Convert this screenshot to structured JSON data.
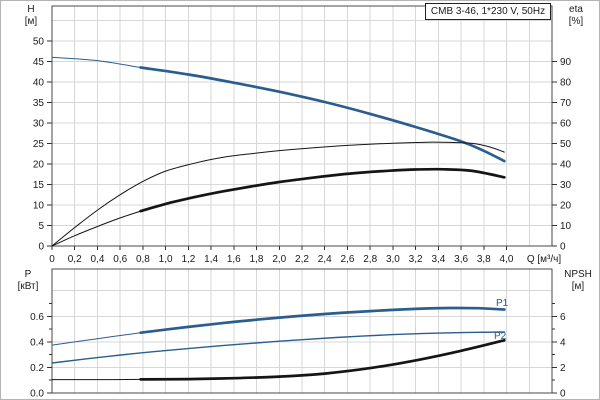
{
  "panel_title": "CMB 3-46, 1*230 V, 50Hz",
  "colors": {
    "curve_blue": "#2b5d8f",
    "curve_black": "#151515",
    "grid": "#d7d7d7",
    "frame": "#4a4a4a",
    "tick": "#333333",
    "text": "#1a1a1a",
    "panel_border": "#b4b4b4"
  },
  "chart_data": [
    {
      "type": "line",
      "title": "CMB 3-46, 1*230 V, 50Hz",
      "position": "top",
      "x_axis": {
        "label": "Q [м³/ч]",
        "min": 0,
        "max": 4.4,
        "grid_step": 0.2,
        "tick_values": [
          0,
          0.2,
          0.4,
          0.6,
          0.8,
          1.0,
          1.2,
          1.4,
          1.6,
          1.8,
          2.0,
          2.2,
          2.4,
          2.6,
          2.8,
          3.0,
          3.2,
          3.4,
          3.6,
          3.8,
          4.0
        ],
        "tick_labels": [
          "0",
          "0,2",
          "0,4",
          "0,6",
          "0,8",
          "1,0",
          "1,2",
          "1,4",
          "1,6",
          "1,8",
          "2,0",
          "2,2",
          "2,4",
          "2,6",
          "2,8",
          "3,0",
          "3,2",
          "3,4",
          "3,6",
          "3,8",
          "4,0"
        ]
      },
      "y_left": {
        "label": "H",
        "unit": "[м]",
        "min": 0,
        "max": 58.5,
        "grid_step": 5,
        "tick_values": [
          0,
          5,
          10,
          15,
          20,
          25,
          30,
          35,
          40,
          45,
          50
        ],
        "tick_labels": [
          "0",
          "5",
          "10",
          "15",
          "20",
          "25",
          "30",
          "35",
          "40",
          "45",
          "50"
        ],
        "minor_ticks": []
      },
      "y_right": {
        "label": "eta",
        "unit": "[%]",
        "min": 0,
        "max": 117,
        "tick_values": [
          0,
          10,
          20,
          30,
          40,
          50,
          60,
          70,
          80,
          90
        ],
        "tick_labels": [
          "0",
          "10",
          "20",
          "30",
          "40",
          "50",
          "60",
          "70",
          "80",
          "90"
        ],
        "minor_ticks": []
      },
      "series": [
        {
          "name": "H-curve",
          "axis": "left",
          "color_key": "curve_blue",
          "segments": [
            {
              "style": "thin",
              "points": [
                [
                  0,
                  46.0
                ],
                [
                  0.4,
                  45.2
                ],
                [
                  0.78,
                  43.5
                ]
              ]
            },
            {
              "style": "thick",
              "points": [
                [
                  0.78,
                  43.5
                ],
                [
                  1.2,
                  41.8
                ],
                [
                  1.6,
                  39.8
                ],
                [
                  2.0,
                  37.6
                ],
                [
                  2.4,
                  35.1
                ],
                [
                  2.8,
                  32.2
                ],
                [
                  3.2,
                  29.0
                ],
                [
                  3.6,
                  25.5
                ],
                [
                  3.8,
                  23.2
                ],
                [
                  3.98,
                  20.7
                ]
              ]
            }
          ]
        },
        {
          "name": "eta1-curve",
          "axis": "right",
          "color_key": "curve_black",
          "segments": [
            {
              "style": "thin",
              "points": [
                [
                  0,
                  0
                ],
                [
                  0.2,
                  9
                ],
                [
                  0.4,
                  17.5
                ],
                [
                  0.6,
                  25
                ],
                [
                  0.8,
                  31.5
                ],
                [
                  1.0,
                  36.5
                ],
                [
                  1.25,
                  40.3
                ],
                [
                  1.5,
                  43.2
                ],
                [
                  1.75,
                  45.0
                ],
                [
                  2.0,
                  46.5
                ],
                [
                  2.25,
                  47.7
                ],
                [
                  2.5,
                  48.7
                ],
                [
                  2.75,
                  49.5
                ],
                [
                  3.0,
                  50.1
                ],
                [
                  3.3,
                  50.6
                ],
                [
                  3.5,
                  50.5
                ],
                [
                  3.7,
                  50.0
                ],
                [
                  3.85,
                  48.3
                ],
                [
                  3.98,
                  45.8
                ]
              ]
            }
          ]
        },
        {
          "name": "eta2-curve",
          "axis": "right",
          "color_key": "curve_black",
          "segments": [
            {
              "style": "thin",
              "points": [
                [
                  0,
                  0
                ],
                [
                  0.2,
                  5
                ],
                [
                  0.4,
                  9.5
                ],
                [
                  0.6,
                  13.7
                ],
                [
                  0.78,
                  17.0
                ]
              ]
            },
            {
              "style": "thick",
              "points": [
                [
                  0.78,
                  17.0
                ],
                [
                  1.0,
                  20.5
                ],
                [
                  1.25,
                  23.8
                ],
                [
                  1.5,
                  26.6
                ],
                [
                  1.75,
                  29.0
                ],
                [
                  2.0,
                  31.2
                ],
                [
                  2.25,
                  33.0
                ],
                [
                  2.5,
                  34.6
                ],
                [
                  2.75,
                  35.9
                ],
                [
                  3.0,
                  36.8
                ],
                [
                  3.2,
                  37.3
                ],
                [
                  3.45,
                  37.4
                ],
                [
                  3.7,
                  36.6
                ],
                [
                  3.98,
                  33.5
                ]
              ]
            }
          ]
        }
      ]
    },
    {
      "type": "line",
      "position": "bottom",
      "x_axis": {
        "label": "",
        "min": 0,
        "max": 4.4,
        "grid_step": 0.2,
        "tick_values": [],
        "tick_labels": []
      },
      "y_left": {
        "label": "P",
        "unit": "[кВт]",
        "min": 0,
        "max": 0.97,
        "grid_step": 0.2,
        "tick_values": [
          0,
          0.2,
          0.4,
          0.6
        ],
        "tick_labels": [
          "0.0",
          "0.2",
          "0.4",
          "0.6"
        ],
        "minor_ticks": [
          0.1,
          0.3,
          0.5,
          0.7
        ]
      },
      "y_right": {
        "label": "NPSH",
        "unit": "[м]",
        "min": 0,
        "max": 9.7,
        "tick_values": [
          0,
          2,
          4,
          6
        ],
        "tick_labels": [
          "0",
          "2",
          "4",
          "6"
        ],
        "minor_ticks": [
          1,
          3,
          5,
          7
        ]
      },
      "series": [
        {
          "name": "P1-curve",
          "axis": "left",
          "color_key": "curve_blue",
          "label": "P1",
          "segments": [
            {
              "style": "thin",
              "points": [
                [
                  0,
                  0.375
                ],
                [
                  0.4,
                  0.425
                ],
                [
                  0.78,
                  0.472
                ]
              ]
            },
            {
              "style": "thick",
              "points": [
                [
                  0.78,
                  0.472
                ],
                [
                  1.2,
                  0.517
                ],
                [
                  1.6,
                  0.556
                ],
                [
                  2.0,
                  0.59
                ],
                [
                  2.4,
                  0.618
                ],
                [
                  2.8,
                  0.641
                ],
                [
                  3.2,
                  0.658
                ],
                [
                  3.5,
                  0.665
                ],
                [
                  3.75,
                  0.663
                ],
                [
                  3.98,
                  0.653
                ]
              ]
            }
          ]
        },
        {
          "name": "P2-curve",
          "axis": "left",
          "color_key": "curve_blue",
          "label": "P2",
          "segments": [
            {
              "style": "mid",
              "points": [
                [
                  0,
                  0.235
                ],
                [
                  0.5,
                  0.287
                ],
                [
                  1.0,
                  0.332
                ],
                [
                  1.5,
                  0.371
                ],
                [
                  2.0,
                  0.405
                ],
                [
                  2.5,
                  0.434
                ],
                [
                  3.0,
                  0.457
                ],
                [
                  3.5,
                  0.471
                ],
                [
                  3.98,
                  0.477
                ]
              ]
            }
          ]
        },
        {
          "name": "NPSH-curve",
          "axis": "right",
          "color_key": "curve_black",
          "segments": [
            {
              "style": "thin",
              "points": [
                [
                  0,
                  1.05
                ],
                [
                  0.4,
                  1.05
                ],
                [
                  0.78,
                  1.06
                ]
              ]
            },
            {
              "style": "thick",
              "points": [
                [
                  0.78,
                  1.06
                ],
                [
                  1.2,
                  1.09
                ],
                [
                  1.6,
                  1.16
                ],
                [
                  2.0,
                  1.28
                ],
                [
                  2.4,
                  1.52
                ],
                [
                  2.8,
                  1.95
                ],
                [
                  3.2,
                  2.55
                ],
                [
                  3.6,
                  3.3
                ],
                [
                  3.98,
                  4.12
                ]
              ]
            }
          ]
        }
      ]
    }
  ]
}
